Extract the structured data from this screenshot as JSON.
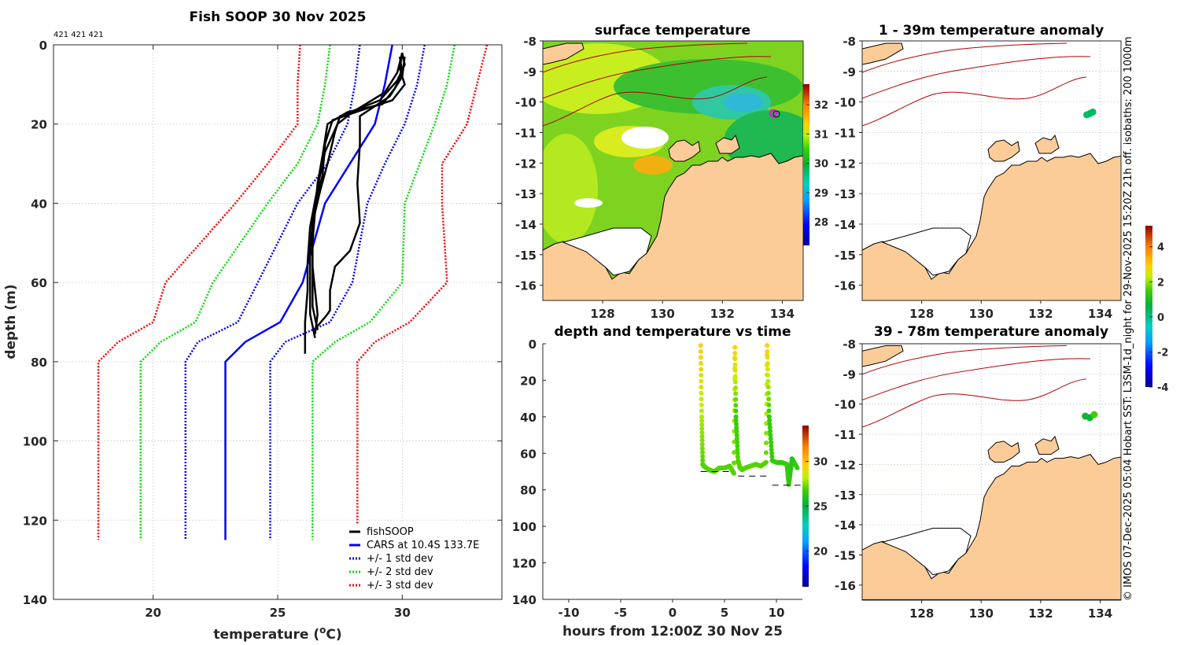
{
  "figure": {
    "credit": "© IMOS 07-Dec-2025 05:04 Hobart SST: L3SM-1d_night for 29-Nov-2025 15:20Z 21h off. isobaths: 200  1000m"
  },
  "colors": {
    "land": "#fbcc98",
    "fishsoop": "#000000",
    "cars": "#0000ff",
    "std1": "#0000ff",
    "std2": "#00dd00",
    "std3": "#ff0000",
    "isobath": "#b00000",
    "track_marker": "#ff00ff"
  },
  "chart_data": [
    {
      "id": "profile",
      "type": "line",
      "title": "Fish SOOP 30 Nov 2025",
      "subtitle": "421 421 421",
      "xlabel": "temperature (°C)",
      "xlabel_main": "temperature (",
      "xlabel_sup": "o",
      "xlabel_end": "C)",
      "ylabel": "depth (m)",
      "xlim": [
        16.0,
        34.0
      ],
      "ylim": [
        0,
        140
      ],
      "y_reversed": true,
      "grid": true,
      "xticks": [
        20,
        25,
        30
      ],
      "yticks": [
        0,
        20,
        40,
        60,
        80,
        100,
        120,
        140
      ],
      "legend_position": "bottom-right",
      "legend": [
        "fishSOOP",
        "CARS at 10.4S 133.7E",
        "+/- 1 std dev",
        "+/- 2 std dev",
        "+/- 3 std dev"
      ],
      "series": [
        {
          "name": "CARS at 10.4S 133.7E",
          "style": "solid",
          "color": "#0000ff",
          "temp": [
            29.6,
            29.3,
            28.9,
            27.9,
            26.9,
            26.0,
            25.1,
            23.7,
            22.9,
            22.9
          ],
          "depth": [
            0,
            10,
            20,
            30,
            40,
            60,
            70,
            75,
            80,
            125
          ]
        },
        {
          "name": "-1 std dev",
          "style": "dotted",
          "color": "#0000ff",
          "temp": [
            28.3,
            28.1,
            27.8,
            27.0,
            25.8,
            24.2,
            23.4,
            21.8,
            21.3,
            21.3
          ],
          "depth": [
            0,
            10,
            20,
            30,
            40,
            60,
            70,
            75,
            80,
            125
          ]
        },
        {
          "name": "+1 std dev",
          "style": "dotted",
          "color": "#0000ff",
          "temp": [
            30.9,
            30.6,
            30.1,
            29.3,
            28.6,
            28.0,
            27.1,
            25.3,
            24.7,
            24.7
          ],
          "depth": [
            0,
            10,
            20,
            30,
            40,
            60,
            70,
            75,
            80,
            125
          ]
        },
        {
          "name": "-2 std dev",
          "style": "dotted",
          "color": "#00dd00",
          "temp": [
            27.1,
            26.9,
            26.6,
            25.8,
            24.6,
            22.4,
            21.7,
            20.3,
            19.5,
            19.5
          ],
          "depth": [
            0,
            10,
            20,
            30,
            40,
            60,
            70,
            75,
            80,
            125
          ]
        },
        {
          "name": "+2 std dev",
          "style": "dotted",
          "color": "#00dd00",
          "temp": [
            32.1,
            31.8,
            31.3,
            30.7,
            30.1,
            30.0,
            28.7,
            27.3,
            26.4,
            26.4
          ],
          "depth": [
            0,
            10,
            20,
            30,
            40,
            60,
            70,
            75,
            80,
            125
          ]
        },
        {
          "name": "-3 std dev",
          "style": "dotted",
          "color": "#ff0000",
          "temp": [
            25.9,
            25.8,
            25.8,
            24.6,
            23.3,
            20.5,
            20.0,
            18.6,
            17.8,
            17.8
          ],
          "depth": [
            0,
            10,
            20,
            30,
            40,
            60,
            70,
            75,
            80,
            125
          ]
        },
        {
          "name": "+3 std dev",
          "style": "dotted",
          "color": "#ff0000",
          "temp": [
            33.4,
            33.0,
            32.6,
            31.6,
            31.6,
            31.8,
            30.3,
            28.9,
            28.2,
            28.2
          ],
          "depth": [
            0,
            10,
            20,
            30,
            40,
            60,
            70,
            75,
            80,
            125
          ]
        }
      ],
      "fishsoop_casts": [
        {
          "temp": [
            30.0,
            29.9,
            30.1,
            29.6,
            28.6,
            27.2,
            26.9,
            26.8,
            26.5,
            26.4,
            26.4,
            26.5,
            26.6,
            26.5
          ],
          "depth": [
            2,
            6,
            10,
            14,
            16,
            19,
            25,
            33,
            40,
            48,
            56,
            62,
            68,
            73
          ]
        },
        {
          "temp": [
            29.9,
            30.0,
            29.7,
            29.2,
            27.8,
            27.0,
            26.8,
            26.6,
            26.5,
            26.4,
            26.4,
            26.4,
            26.6
          ],
          "depth": [
            3,
            7,
            11,
            15,
            17,
            20,
            28,
            35,
            42,
            50,
            58,
            66,
            72
          ]
        },
        {
          "temp": [
            30.0,
            30.1,
            29.8,
            29.1,
            27.5,
            27.3,
            27.0,
            26.7,
            26.4,
            26.3,
            26.3,
            26.3,
            26.5
          ],
          "depth": [
            2,
            5,
            9,
            14,
            18,
            22,
            30,
            37,
            45,
            52,
            60,
            68,
            74
          ]
        },
        {
          "temp": [
            30.1,
            30.0,
            29.5,
            28.3,
            28.3,
            28.2,
            28.3,
            27.9,
            27.3,
            27.1,
            27.1,
            27.0,
            26.6
          ],
          "depth": [
            3,
            8,
            13,
            18,
            25,
            35,
            45,
            52,
            56,
            62,
            67,
            68,
            71
          ]
        },
        {
          "temp": [
            30.0,
            29.8,
            29.3,
            28.0,
            27.4,
            26.9,
            26.6,
            26.3,
            26.2,
            26.2,
            26.1,
            26.1
          ],
          "depth": [
            2,
            7,
            12,
            17,
            20,
            27,
            36,
            46,
            55,
            62,
            70,
            78
          ]
        }
      ]
    },
    {
      "id": "sst-map",
      "type": "heatmap",
      "title": "surface temperature",
      "xlim": [
        126.0,
        134.7
      ],
      "ylim": [
        -16.5,
        -8
      ],
      "xticks": [
        128,
        130,
        132,
        134
      ],
      "yticks": [
        -8,
        -9,
        -10,
        -11,
        -12,
        -13,
        -14,
        -15,
        -16
      ],
      "colorbar": {
        "ticks": [
          28,
          29,
          30,
          31,
          32
        ],
        "range": [
          27.2,
          32.7
        ]
      },
      "vessel_position": {
        "lon": 133.7,
        "lat": -10.4
      }
    },
    {
      "id": "depth-time",
      "type": "scatter",
      "title": "depth and temperature vs time",
      "xlabel": "hours from 12:00Z 30 Nov 25",
      "xlim": [
        -12.5,
        12.5
      ],
      "ylim": [
        0,
        140
      ],
      "y_reversed": true,
      "xticks": [
        -10,
        -5,
        0,
        5,
        10
      ],
      "yticks": [
        0,
        20,
        40,
        60,
        80,
        100,
        120,
        140
      ],
      "colorbar": {
        "ticks": [
          20,
          25,
          30
        ],
        "range": [
          16,
          34
        ]
      },
      "track": {
        "hours": [
          2.7,
          2.8,
          2.9,
          3.0,
          3.5,
          4.0,
          4.5,
          5.0,
          5.5,
          5.9,
          6.0,
          6.1,
          6.3,
          6.5,
          6.7,
          7.0,
          7.5,
          8.0,
          8.5,
          9.0,
          9.1,
          9.3,
          9.6,
          10.0,
          10.5,
          11.0,
          11.2,
          11.5,
          12.0
        ],
        "depth": [
          1,
          40,
          66,
          67,
          69,
          70,
          68,
          68,
          67,
          71,
          2,
          40,
          64,
          68,
          69,
          68,
          67,
          66,
          67,
          65,
          1,
          40,
          64,
          65,
          65,
          66,
          77,
          63,
          68
        ],
        "temp": [
          29.5,
          28,
          27,
          27,
          27,
          27,
          27,
          27,
          27,
          27,
          29.5,
          26.5,
          27,
          27,
          27,
          27,
          27,
          27,
          27,
          27,
          29.5,
          26.5,
          26.5,
          26.5,
          26.5,
          26.5,
          26.5,
          26,
          26.5
        ]
      },
      "bottom_depth_segments": [
        {
          "h0": 2.7,
          "h1": 5.9,
          "depth": 70
        },
        {
          "h0": 6.3,
          "h1": 9.1,
          "depth": 72.5
        },
        {
          "h0": 9.6,
          "h1": 12.5,
          "depth": 77.5
        }
      ]
    },
    {
      "id": "anomaly-1-39",
      "type": "heatmap",
      "title": "1 - 39m temperature anomaly",
      "xlim": [
        126.0,
        134.7
      ],
      "ylim": [
        -16.5,
        -8
      ],
      "xticks": [
        128,
        130,
        132,
        134
      ],
      "yticks": [
        -8,
        -9,
        -10,
        -11,
        -12,
        -13,
        -14,
        -15,
        -16
      ],
      "points": [
        {
          "lon": 133.55,
          "lat": -10.42,
          "anomaly": 0.2
        },
        {
          "lon": 133.65,
          "lat": -10.38,
          "anomaly": 0.3
        },
        {
          "lon": 133.75,
          "lat": -10.33,
          "anomaly": 0.3
        }
      ]
    },
    {
      "id": "anomaly-39-78",
      "type": "heatmap",
      "title": "39 - 78m temperature anomaly",
      "xlim": [
        126.0,
        134.7
      ],
      "ylim": [
        -16.5,
        -8
      ],
      "xticks": [
        128,
        130,
        132,
        134
      ],
      "yticks": [
        -8,
        -9,
        -10,
        -11,
        -12,
        -13,
        -14,
        -15,
        -16
      ],
      "colorbar": {
        "ticks": [
          -4,
          -2,
          0,
          2,
          4
        ],
        "range": [
          -4,
          5.2
        ]
      },
      "points": [
        {
          "lon": 133.5,
          "lat": -10.4,
          "anomaly": 0.8
        },
        {
          "lon": 133.65,
          "lat": -10.45,
          "anomaly": 0.7
        },
        {
          "lon": 133.8,
          "lat": -10.35,
          "anomaly": 1.5
        }
      ]
    }
  ]
}
